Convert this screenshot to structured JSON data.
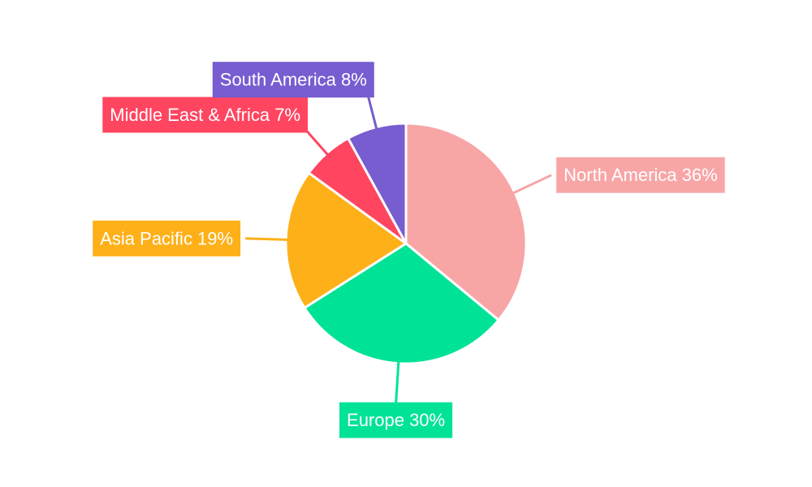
{
  "chart_data": {
    "type": "pie",
    "values": [
      36,
      30,
      19,
      7,
      8
    ],
    "value_labels": [
      "North America 36%",
      "Europe 30%",
      "Asia Pacific 19%",
      "Middle East & Africa 7%",
      "South America 8%"
    ],
    "colors": [
      "#f8a5a6",
      "#00e396",
      "#feb019",
      "#ff4560",
      "#775dd0"
    ]
  }
}
